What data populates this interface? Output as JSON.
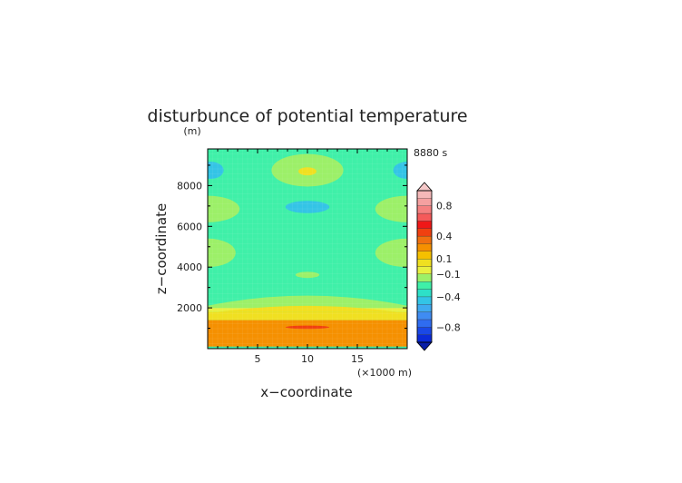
{
  "chart_data": {
    "type": "heatmap",
    "title": "disturbunce of potential temperature",
    "ylabel": "z−coordinate",
    "yunit": "(m)",
    "xlabel": "x−coordinate",
    "xunit": "(×1000 m)",
    "time_label": "8880 s",
    "xlim": [
      0,
      20
    ],
    "ylim": [
      0,
      9800
    ],
    "x_ticks": [
      5,
      10,
      15
    ],
    "x_tick_labels": [
      "5",
      "10",
      "15"
    ],
    "y_ticks": [
      2000,
      4000,
      6000,
      8000
    ],
    "y_tick_labels": [
      "2000",
      "4000",
      "6000",
      "8000"
    ],
    "background_value": -0.3,
    "features": [
      {
        "kind": "band",
        "value": 0.2,
        "y": [
          100,
          1400
        ]
      },
      {
        "kind": "band",
        "value": 0.05,
        "y": [
          1400,
          1800
        ]
      },
      {
        "kind": "band",
        "value": -0.05,
        "y": [
          1800,
          2000
        ]
      },
      {
        "kind": "hump",
        "value": -0.15,
        "x_center": 10,
        "half_width": 11,
        "y_base": 2000,
        "y_peak": 2600
      },
      {
        "kind": "hump",
        "value": 0.05,
        "x_center": 10,
        "half_width": 9,
        "y_base": 1800,
        "y_peak": 2100
      },
      {
        "kind": "ellipse",
        "value": 0.45,
        "cx": 10,
        "cy": 1050,
        "rx": 2.2,
        "ry": 80
      },
      {
        "kind": "ellipse",
        "value": -0.15,
        "cx": 10,
        "cy": 3620,
        "rx": 1.2,
        "ry": 150
      },
      {
        "kind": "ellipse",
        "value": -0.15,
        "cx": 0,
        "cy": 4700,
        "rx": 2.8,
        "ry": 700
      },
      {
        "kind": "ellipse",
        "value": -0.15,
        "cx": 20,
        "cy": 4700,
        "rx": 3.2,
        "ry": 700
      },
      {
        "kind": "ellipse",
        "value": -0.15,
        "cx": 0,
        "cy": 6850,
        "rx": 3.2,
        "ry": 650
      },
      {
        "kind": "ellipse",
        "value": -0.15,
        "cx": 20,
        "cy": 6850,
        "rx": 3.2,
        "ry": 650
      },
      {
        "kind": "ellipse",
        "value": -0.5,
        "cx": 10,
        "cy": 6950,
        "rx": 2.2,
        "ry": 300
      },
      {
        "kind": "ellipse",
        "value": -0.15,
        "cx": 10,
        "cy": 8750,
        "rx": 3.6,
        "ry": 800
      },
      {
        "kind": "ellipse",
        "value": 0.05,
        "cx": 10,
        "cy": 8700,
        "rx": 0.9,
        "ry": 200
      },
      {
        "kind": "ellipse",
        "value": -0.5,
        "cx": 0.3,
        "cy": 8750,
        "rx": 1.3,
        "ry": 420
      },
      {
        "kind": "ellipse",
        "value": -0.5,
        "cx": 20,
        "cy": 8750,
        "rx": 1.4,
        "ry": 420
      }
    ],
    "colorbar": {
      "levels": [
        -1.0,
        -0.9,
        -0.8,
        -0.7,
        -0.6,
        -0.5,
        -0.4,
        -0.3,
        -0.2,
        -0.1,
        0.0,
        0.1,
        0.2,
        0.3,
        0.4,
        0.5,
        0.6,
        0.7,
        0.8,
        0.9,
        1.0
      ],
      "colors": [
        "#0b2bd8",
        "#1a48e6",
        "#2f6cf0",
        "#3f8cf2",
        "#3faaf0",
        "#33c4e6",
        "#2de0c8",
        "#3ff0a8",
        "#9cf068",
        "#e8f040",
        "#f0e020",
        "#f5c000",
        "#f59000",
        "#f07010",
        "#f04010",
        "#f01818",
        "#f55a5a",
        "#f58080",
        "#f5a0a0",
        "#f5b8b8"
      ],
      "tick_values": [
        0.8,
        0.4,
        0.1,
        -0.1,
        -0.4,
        -0.8
      ],
      "tick_labels": [
        "0.8",
        "0.4",
        "0.1",
        "−0.1",
        "−0.4",
        "−0.8"
      ]
    }
  }
}
